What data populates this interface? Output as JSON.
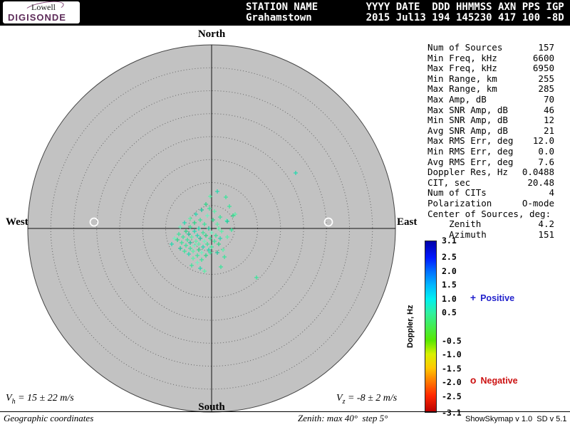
{
  "logo": {
    "line1": "Lowell",
    "line2": "DIGISONDE"
  },
  "header": {
    "line1": "STATION NAME        YYYY DATE  DDD HHMMSS AXN PPS IGP",
    "line2": "Grahamstown         2015 Jul13 194 145230 417 100 -8D"
  },
  "compass": {
    "north": "North",
    "south": "South",
    "east": "East",
    "west": "West"
  },
  "stats": {
    "rows": [
      {
        "label": "Num of Sources",
        "value": "157"
      },
      {
        "label": "Min Freq, kHz",
        "value": "6600"
      },
      {
        "label": "Max Freq, kHz",
        "value": "6950"
      },
      {
        "label": "Min Range, km",
        "value": "255"
      },
      {
        "label": "Max Range, km",
        "value": "285"
      },
      {
        "label": "Max Amp, dB",
        "value": "70"
      },
      {
        "label": "Max SNR Amp, dB",
        "value": "46"
      },
      {
        "label": "Min SNR Amp, dB",
        "value": "12"
      },
      {
        "label": "Avg SNR Amp, dB",
        "value": "21"
      },
      {
        "label": "Max RMS Err, deg",
        "value": "12.0"
      },
      {
        "label": "Min RMS Err, deg",
        "value": "0.0"
      },
      {
        "label": "Avg RMS Err, deg",
        "value": "7.6"
      },
      {
        "label": "Doppler Res, Hz",
        "value": "0.0488"
      },
      {
        "label": "CIT, sec",
        "value": "20.48"
      },
      {
        "label": "Num of CITs",
        "value": "4"
      },
      {
        "label": "Polarization",
        "value": "O-mode"
      },
      {
        "label": "Center of Sources, deg:",
        "value": ""
      },
      {
        "label": "    Zenith",
        "value": "4.2"
      },
      {
        "label": "    Azimuth",
        "value": "151"
      }
    ]
  },
  "colorbar": {
    "title": "Doppler, Hz",
    "tick_values": [
      "3.1",
      "2.5",
      "2.0",
      "1.5",
      "1.0",
      "0.5",
      "-0.5",
      "-1.0",
      "-1.5",
      "-2.0",
      "-2.5",
      "-3.1"
    ],
    "tick_colors": [
      "#0000a8",
      "#0018ff",
      "#0070ff",
      "#00b8ff",
      "#00f0f0",
      "#30f0a0",
      "#58e800",
      "#d8f000",
      "#ffc800",
      "#ff7800",
      "#ff2800",
      "#b80000"
    ]
  },
  "legend": {
    "positive": {
      "symbol": "+",
      "label": "Positive",
      "color": "#2222cc"
    },
    "negative": {
      "symbol": "o",
      "label": "Negative",
      "color": "#cc1111"
    }
  },
  "velocities": {
    "vh": {
      "base": "V",
      "sub": "h",
      "rest": " = 15 ± 22 m/s"
    },
    "vz": {
      "base": "V",
      "sub": "z",
      "rest": " = -8 ± 2 m/s"
    }
  },
  "footer": {
    "coords": "Geographic coordinates",
    "zenith_info": "Zenith: max 40°  step 5°",
    "version": "ShowSkymap v 1.0  SD v 5.1"
  },
  "skymap": {
    "background": "#c2c2c2",
    "rings": 8,
    "zenith_max_deg": 40,
    "zenith_step_deg": 5,
    "white_markers": [
      [
        -165,
        -9
      ],
      [
        164,
        -9
      ]
    ],
    "point_color_palette": [
      "#3ce39b",
      "#26d8ae",
      "#5beea8",
      "#2fd489",
      "#6ff0bd",
      "#21c79b"
    ],
    "points": [
      [
        118,
        -78,
        1
      ],
      [
        25,
        -31,
        0
      ],
      [
        33,
        -20,
        2
      ],
      [
        21,
        -11,
        4
      ],
      [
        30,
        -18,
        3
      ],
      [
        20,
        -44,
        0
      ],
      [
        -2,
        -45,
        2
      ],
      [
        8,
        -52,
        1
      ],
      [
        -8,
        -34,
        3
      ],
      [
        -3,
        -28,
        0
      ],
      [
        -14,
        -26,
        5
      ],
      [
        4,
        -24,
        2
      ],
      [
        -22,
        -20,
        1
      ],
      [
        -6,
        -18,
        4
      ],
      [
        12,
        -16,
        0
      ],
      [
        2,
        -12,
        3
      ],
      [
        -30,
        -14,
        2
      ],
      [
        -16,
        -12,
        0
      ],
      [
        22,
        -10,
        5
      ],
      [
        -38,
        -8,
        1
      ],
      [
        -24,
        -8,
        3
      ],
      [
        -10,
        -6,
        0
      ],
      [
        8,
        -6,
        2
      ],
      [
        -44,
        -2,
        4
      ],
      [
        -30,
        -2,
        0
      ],
      [
        -18,
        0,
        1
      ],
      [
        -4,
        0,
        5
      ],
      [
        10,
        0,
        2
      ],
      [
        28,
        2,
        0
      ],
      [
        -36,
        4,
        3
      ],
      [
        -24,
        4,
        1
      ],
      [
        -12,
        6,
        0
      ],
      [
        0,
        6,
        4
      ],
      [
        14,
        4,
        2
      ],
      [
        -46,
        8,
        0
      ],
      [
        -32,
        8,
        5
      ],
      [
        -20,
        10,
        1
      ],
      [
        -8,
        10,
        3
      ],
      [
        6,
        10,
        0
      ],
      [
        22,
        12,
        2
      ],
      [
        -52,
        14,
        4
      ],
      [
        -40,
        12,
        0
      ],
      [
        -28,
        12,
        2
      ],
      [
        -16,
        14,
        5
      ],
      [
        -2,
        14,
        0
      ],
      [
        12,
        14,
        1
      ],
      [
        -48,
        16,
        3
      ],
      [
        -34,
        16,
        0
      ],
      [
        -22,
        18,
        2
      ],
      [
        -10,
        18,
        4
      ],
      [
        4,
        18,
        0
      ],
      [
        -56,
        22,
        1
      ],
      [
        -42,
        20,
        0
      ],
      [
        -30,
        20,
        5
      ],
      [
        -18,
        22,
        2
      ],
      [
        -6,
        22,
        0
      ],
      [
        10,
        22,
        3
      ],
      [
        -36,
        24,
        0
      ],
      [
        -24,
        24,
        4
      ],
      [
        -12,
        26,
        1
      ],
      [
        0,
        26,
        0
      ],
      [
        16,
        30,
        2
      ],
      [
        -44,
        28,
        5
      ],
      [
        -30,
        28,
        0
      ],
      [
        -18,
        30,
        3
      ],
      [
        -4,
        30,
        1
      ],
      [
        -38,
        32,
        0
      ],
      [
        -26,
        32,
        2
      ],
      [
        -14,
        34,
        4
      ],
      [
        -2,
        34,
        0
      ],
      [
        8,
        34,
        5
      ],
      [
        -32,
        36,
        1
      ],
      [
        -20,
        38,
        0
      ],
      [
        -8,
        38,
        3
      ],
      [
        18,
        40,
        0
      ],
      [
        -26,
        42,
        2
      ],
      [
        -14,
        44,
        0
      ],
      [
        -20,
        48,
        4
      ],
      [
        -28,
        52,
        0
      ],
      [
        -16,
        56,
        1
      ],
      [
        13,
        54,
        0
      ],
      [
        -10,
        60,
        2
      ],
      [
        63,
        69,
        0
      ]
    ]
  }
}
